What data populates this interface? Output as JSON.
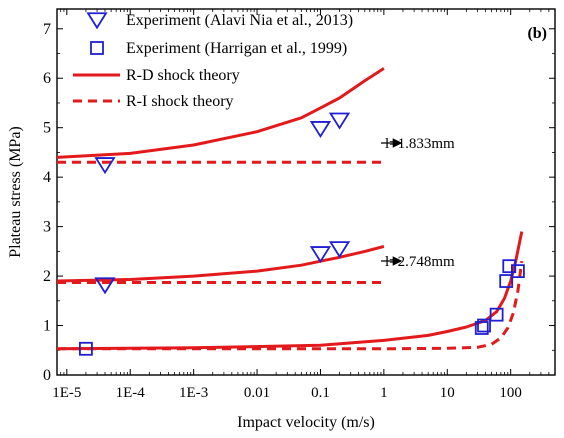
{
  "chart_data": {
    "type": "scatter",
    "panel_label": "(b)",
    "xlabel": "Impact velocity (m/s)",
    "ylabel": "Plateau stress (MPa)",
    "xscale": "log",
    "xlim": [
      7e-06,
      500
    ],
    "ylim": [
      0,
      7.4
    ],
    "x_ticks": [
      1e-05,
      0.0001,
      0.001,
      0.01,
      0.1,
      1,
      10,
      100
    ],
    "x_tick_labels": [
      "1E-5",
      "1E-4",
      "1E-3",
      "0.01",
      "0.1",
      "1",
      "10",
      "100"
    ],
    "y_ticks": [
      0,
      1,
      2,
      3,
      4,
      5,
      6,
      7
    ],
    "y_tick_labels": [
      "0",
      "1",
      "2",
      "3",
      "4",
      "5",
      "6",
      "7"
    ],
    "grid": false,
    "legend_position": "top-left",
    "legend": [
      {
        "label": "Experiment (Alavi Nia et al., 2013)",
        "marker": "triangle-down",
        "color": "#1f1fd1"
      },
      {
        "label": "Experiment (Harrigan et al., 1999)",
        "marker": "square",
        "color": "#1f1fd1"
      },
      {
        "label": "R-D shock theory",
        "line": "solid",
        "color": "#e31a1c"
      },
      {
        "label": "R-I shock theory",
        "line": "dashed",
        "color": "#e31a1c"
      }
    ],
    "series": [
      {
        "name": "Experiment (Alavi Nia et al., 2013)",
        "kind": "scatter",
        "marker": "triangle-down",
        "x": [
          4e-05,
          0.1,
          0.2,
          4e-05,
          0.1,
          0.2
        ],
        "y": [
          4.25,
          4.98,
          5.15,
          1.82,
          2.45,
          2.55
        ]
      },
      {
        "name": "Experiment (Harrigan et al., 1999)",
        "kind": "scatter",
        "marker": "square",
        "x": [
          2e-05,
          35,
          38,
          60,
          85,
          95,
          130
        ],
        "y": [
          0.53,
          0.95,
          1.0,
          1.22,
          1.9,
          2.2,
          2.1
        ]
      },
      {
        "name": "R-D shock theory",
        "kind": "line",
        "style": "solid",
        "curves": [
          {
            "x": [
              7e-06,
              0.0001,
              0.001,
              0.01,
              0.05,
              0.1,
              0.2,
              0.5,
              1
            ],
            "y": [
              4.4,
              4.48,
              4.65,
              4.92,
              5.2,
              5.4,
              5.6,
              5.95,
              6.2
            ]
          },
          {
            "x": [
              7e-06,
              0.0001,
              0.001,
              0.01,
              0.05,
              0.1,
              0.2,
              0.5,
              1
            ],
            "y": [
              1.9,
              1.93,
              2.0,
              2.1,
              2.22,
              2.3,
              2.38,
              2.5,
              2.6
            ]
          },
          {
            "x": [
              7e-06,
              0.001,
              0.1,
              1,
              5,
              10,
              20,
              40,
              60,
              80,
              100,
              120,
              150
            ],
            "y": [
              0.53,
              0.55,
              0.6,
              0.7,
              0.8,
              0.88,
              0.97,
              1.1,
              1.28,
              1.55,
              1.9,
              2.3,
              2.9
            ]
          }
        ]
      },
      {
        "name": "R-I shock theory",
        "kind": "line",
        "style": "dashed",
        "curves": [
          {
            "x": [
              7e-06,
              1
            ],
            "y": [
              4.3,
              4.3
            ]
          },
          {
            "x": [
              7e-06,
              1
            ],
            "y": [
              1.87,
              1.87
            ]
          },
          {
            "x": [
              7e-06,
              1,
              10,
              30,
              50,
              70,
              90,
              110,
              130,
              150
            ],
            "y": [
              0.53,
              0.53,
              0.54,
              0.56,
              0.62,
              0.75,
              0.95,
              1.25,
              1.7,
              2.3
            ]
          }
        ]
      }
    ],
    "annotations": [
      {
        "text": "l=1.833mm",
        "arrow_to": [
          1.3,
          5.4
        ]
      },
      {
        "text": "l=2.748mm",
        "arrow_to": [
          1.3,
          2.35
        ]
      }
    ]
  }
}
